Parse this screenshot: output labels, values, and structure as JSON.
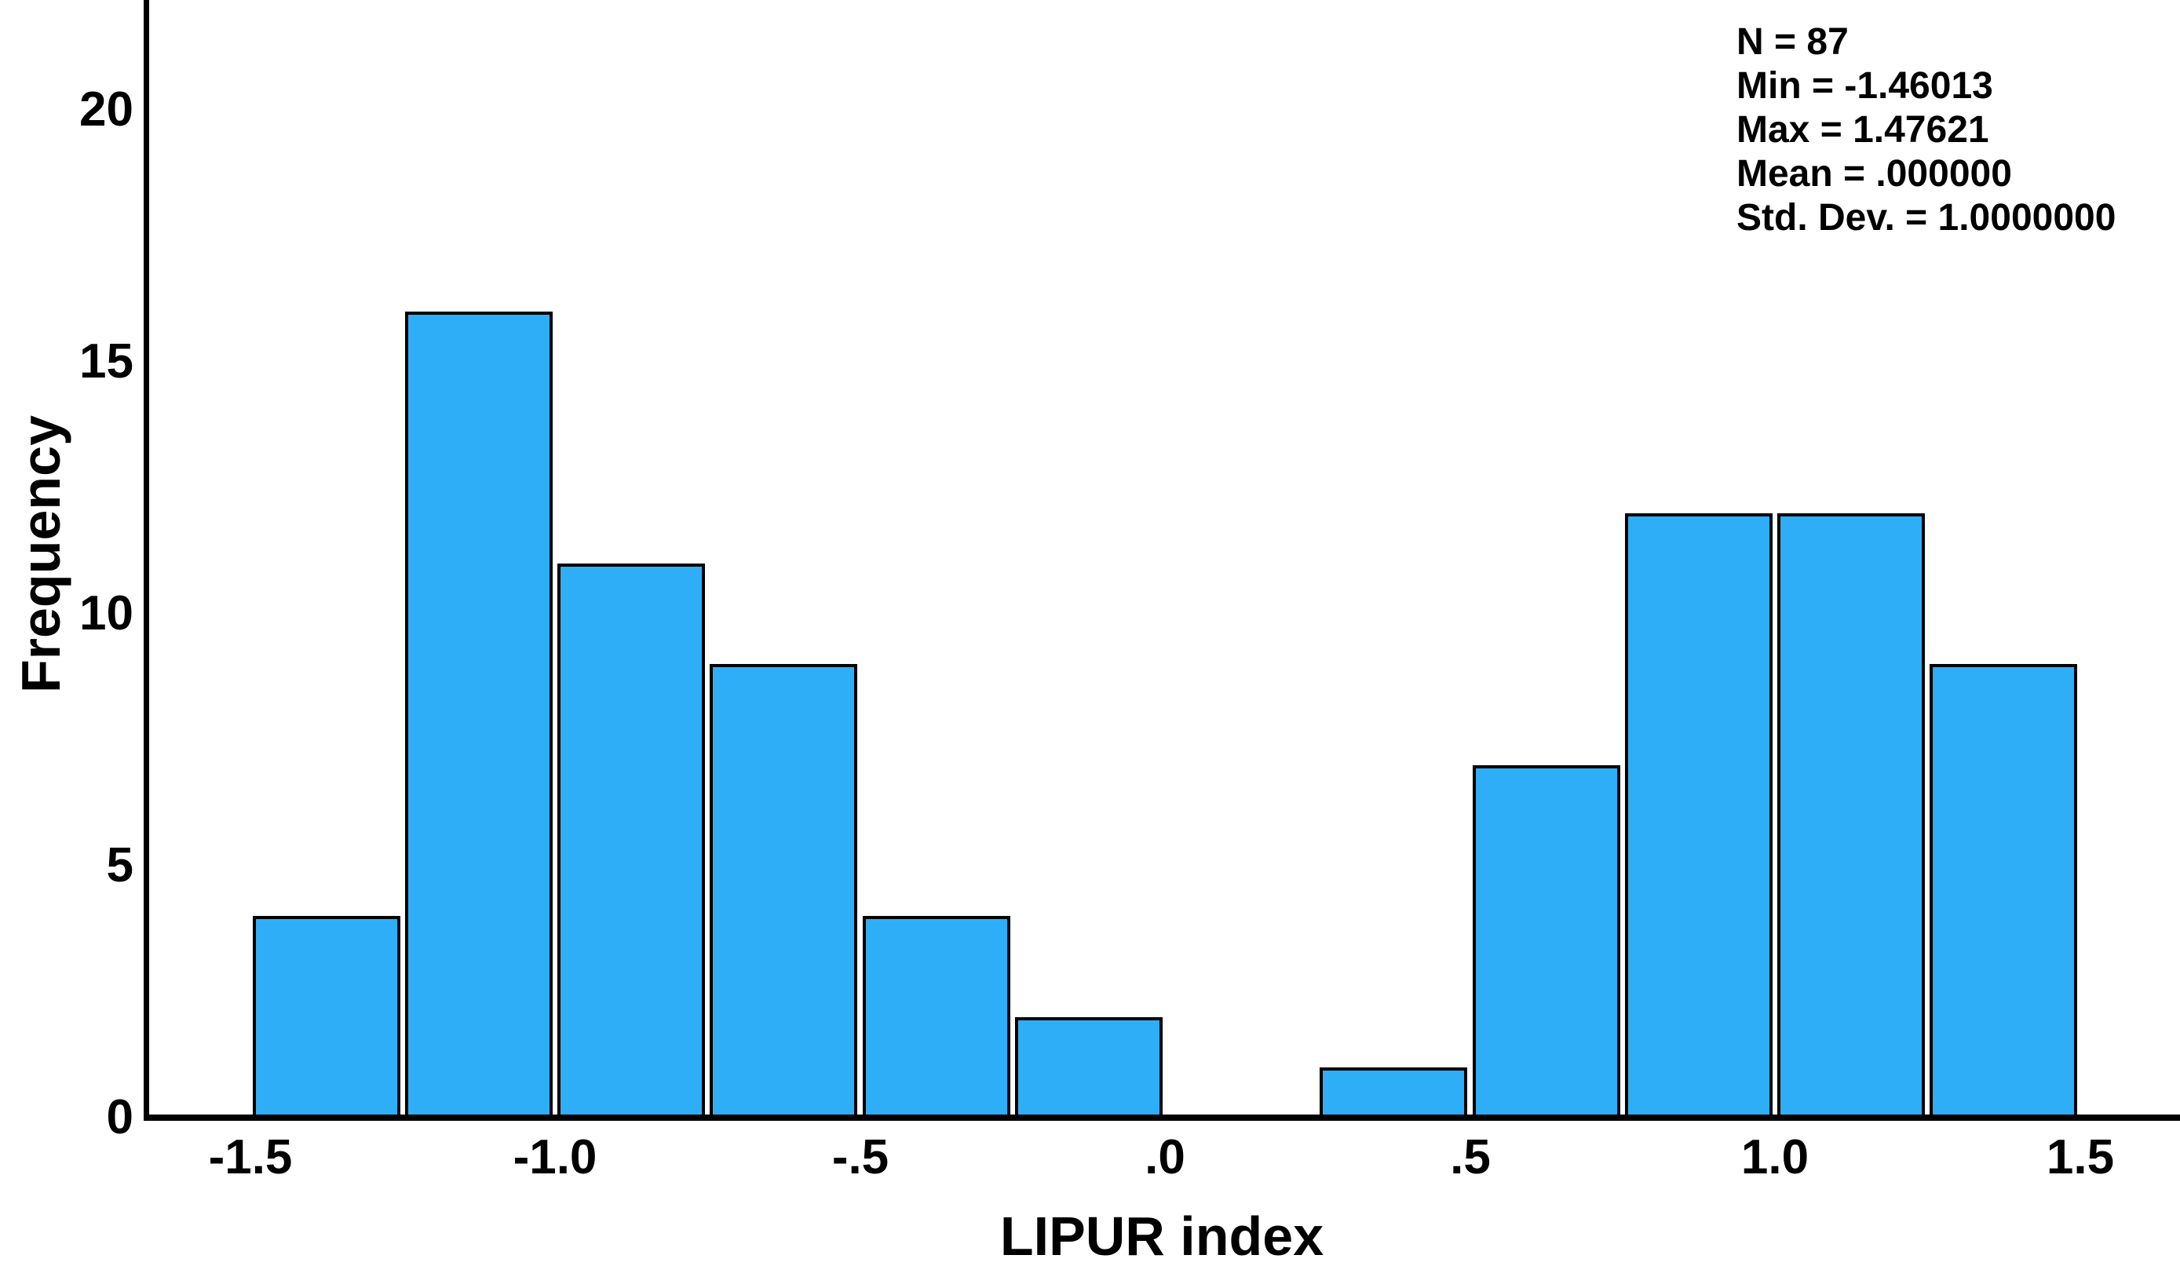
{
  "chart_data": {
    "type": "histogram",
    "title": "",
    "xlabel": "LIPUR index",
    "ylabel": "Frequency",
    "bin_start": -1.5,
    "bin_width": 0.25,
    "bin_edges": [
      -1.5,
      -1.25,
      -1.0,
      -0.75,
      -0.5,
      -0.25,
      0.0,
      0.25,
      0.5,
      0.75,
      1.0,
      1.25,
      1.5
    ],
    "counts": [
      4,
      16,
      11,
      9,
      4,
      2,
      0,
      1,
      7,
      12,
      12,
      9
    ],
    "x_ticks": [
      {
        "value": -1.5,
        "label": "-1.5"
      },
      {
        "value": -1.0,
        "label": "-1.0"
      },
      {
        "value": -0.5,
        "label": "-.5"
      },
      {
        "value": 0.0,
        "label": ".0"
      },
      {
        "value": 0.5,
        "label": ".5"
      },
      {
        "value": 1.0,
        "label": "1.0"
      },
      {
        "value": 1.5,
        "label": "1.5"
      }
    ],
    "y_ticks": [
      {
        "value": 0,
        "label": "0"
      },
      {
        "value": 5,
        "label": "5"
      },
      {
        "value": 10,
        "label": "10"
      },
      {
        "value": 15,
        "label": "15"
      },
      {
        "value": 20,
        "label": "20"
      }
    ],
    "ylim": [
      0,
      22.2
    ],
    "grid": false,
    "legend": false,
    "annotation_lines": [
      "N = 87",
      "Min = -1.46013",
      "Max = 1.47621",
      "Mean = .000000",
      "Std. Dev. = 1.0000000"
    ],
    "stats": {
      "n": 87,
      "min": -1.46013,
      "max": 1.47621,
      "mean": ".000000",
      "std_dev": "1.0000000"
    },
    "colors": {
      "bar_fill": "#2FAEF8",
      "bar_border": "#000000",
      "axis": "#000000",
      "text": "#000000",
      "background": "#FFFFFF"
    }
  }
}
